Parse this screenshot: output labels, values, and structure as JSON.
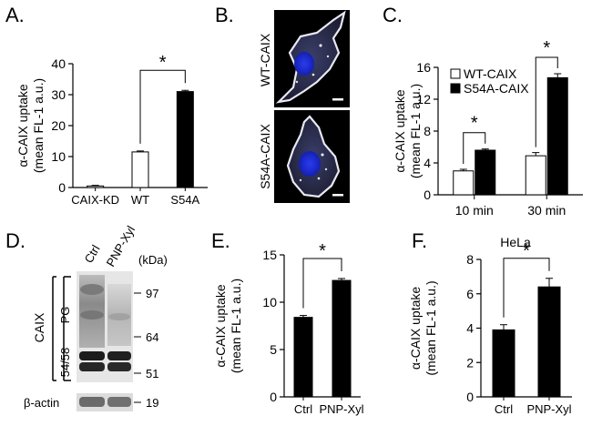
{
  "panels": {
    "A": {
      "letter": "A."
    },
    "B": {
      "letter": "B.",
      "image_labels": [
        "WT-CAIX",
        "S54A-CAIX"
      ]
    },
    "C": {
      "letter": "C."
    },
    "D": {
      "letter": "D.",
      "lanes": [
        "Ctrl",
        "PNP-Xyl"
      ],
      "unit": "(kDa)",
      "markers": [
        "97",
        "64",
        "51",
        "19"
      ],
      "side_labels": {
        "protein": "CAIX",
        "pg": "PG",
        "core": "54/58",
        "loading": "β-actin"
      }
    },
    "E": {
      "letter": "E."
    },
    "F": {
      "letter": "F."
    }
  },
  "significance_mark": "*",
  "colors": {
    "black_bar": "#000000",
    "white_bar": "#ffffff",
    "axis": "#000000",
    "nucleus": "#1a2bd8",
    "membrane": "#d8d8e8"
  },
  "chart_data": [
    {
      "id": "A",
      "type": "bar",
      "ylabel": [
        "α-CAIX uptake",
        "(mean FL-1 a.u.)"
      ],
      "ylim": [
        0,
        40
      ],
      "yticks": [
        0,
        10,
        20,
        30,
        40
      ],
      "categories": [
        "CAIX-KD",
        "WT",
        "S54A"
      ],
      "values": [
        0.5,
        11.5,
        31
      ],
      "errors": [
        0.2,
        0.3,
        0.4
      ],
      "fills": [
        "white",
        "white",
        "black"
      ],
      "significance": [
        {
          "between": [
            1,
            2
          ],
          "mark": "*"
        }
      ]
    },
    {
      "id": "C",
      "type": "bar",
      "ylabel": [
        "α-CAIX uptake",
        "(mean FL-1 a.u.)"
      ],
      "ylim": [
        0,
        16
      ],
      "yticks": [
        0,
        4,
        8,
        12,
        16
      ],
      "categories": [
        "10 min",
        "30 min"
      ],
      "series": [
        {
          "name": "WT-CAIX",
          "fill": "white",
          "values": [
            3.0,
            4.9
          ],
          "errors": [
            0.2,
            0.4
          ]
        },
        {
          "name": "S54A-CAIX",
          "fill": "black",
          "values": [
            5.6,
            14.7
          ],
          "errors": [
            0.15,
            0.5
          ]
        }
      ],
      "legend": "top-left",
      "significance": [
        {
          "group": 0,
          "mark": "*"
        },
        {
          "group": 1,
          "mark": "*"
        }
      ]
    },
    {
      "id": "E",
      "type": "bar",
      "ylabel": [
        "α-CAIX uptake",
        "(mean FL-1 a.u.)"
      ],
      "ylim": [
        0,
        15
      ],
      "yticks": [
        0,
        5,
        10,
        15
      ],
      "categories": [
        "Ctrl",
        "PNP-Xyl"
      ],
      "values": [
        8.4,
        12.3
      ],
      "errors": [
        0.2,
        0.2
      ],
      "fills": [
        "black",
        "black"
      ],
      "significance": [
        {
          "between": [
            0,
            1
          ],
          "mark": "*"
        }
      ]
    },
    {
      "id": "F",
      "type": "bar",
      "title": "HeLa",
      "ylabel": [
        "α-CAIX uptake",
        "(mean FL-1 a.u.)"
      ],
      "ylim": [
        0,
        8
      ],
      "yticks": [
        0,
        2,
        4,
        6,
        8
      ],
      "categories": [
        "Ctrl",
        "PNP-Xyl"
      ],
      "values": [
        3.9,
        6.4
      ],
      "errors": [
        0.3,
        0.5
      ],
      "fills": [
        "black",
        "black"
      ],
      "significance": [
        {
          "between": [
            0,
            1
          ],
          "mark": "*"
        }
      ]
    }
  ]
}
